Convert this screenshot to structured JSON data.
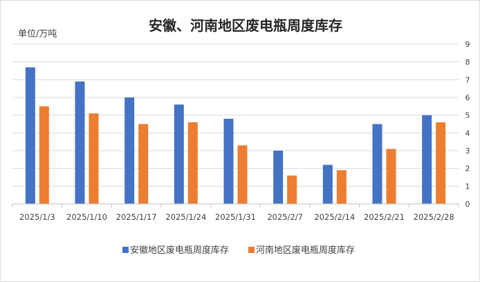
{
  "chart_data": {
    "type": "bar",
    "title": "安徽、河南地区废电瓶周度库存",
    "unit_label": "单位/万吨",
    "categories": [
      "2025/1/3",
      "2025/1/10",
      "2025/1/17",
      "2025/1/24",
      "2025/1/31",
      "2025/2/7",
      "2025/2/14",
      "2025/2/21",
      "2025/2/28"
    ],
    "series": [
      {
        "name": "安徽地区废电瓶周度库存",
        "color": "#4472C4",
        "values": [
          7.7,
          6.9,
          6.0,
          5.6,
          4.8,
          3.0,
          2.2,
          4.5,
          5.0
        ]
      },
      {
        "name": "河南地区废电瓶周度库存",
        "color": "#ED7D31",
        "values": [
          5.5,
          5.1,
          4.5,
          4.6,
          3.3,
          1.6,
          1.9,
          3.1,
          4.6
        ]
      }
    ],
    "y_axis_position": "right",
    "ylim": [
      0,
      9
    ],
    "yticks": [
      "0",
      "1",
      "2",
      "3",
      "4",
      "5",
      "6",
      "7",
      "8",
      "9"
    ],
    "grid": true,
    "legend_position": "bottom"
  }
}
